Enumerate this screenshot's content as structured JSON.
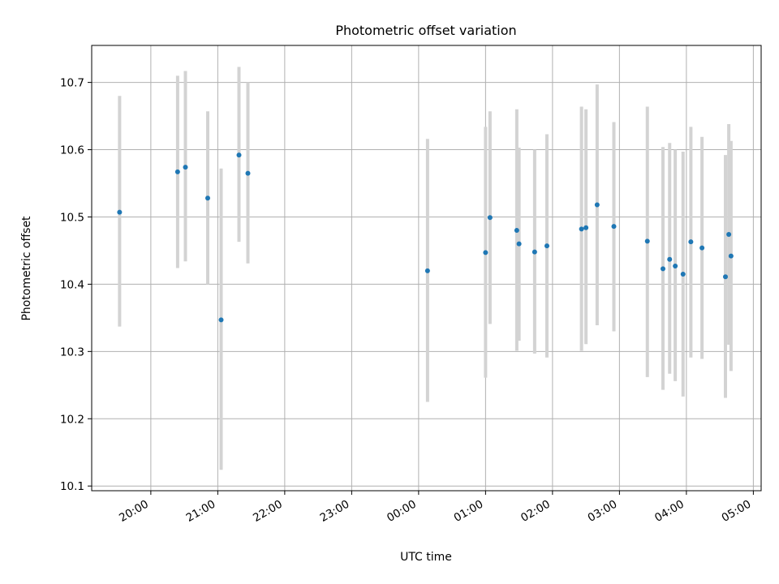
{
  "chart_data": {
    "type": "scatter",
    "title": "Photometric offset variation",
    "xlabel": "UTC time",
    "ylabel": "Photometric offset",
    "x_ticks": [
      "20:00",
      "21:00",
      "22:00",
      "23:00",
      "00:00",
      "01:00",
      "02:00",
      "03:00",
      "04:00",
      "05:00"
    ],
    "y_ticks": [
      "10.1",
      "10.2",
      "10.3",
      "10.4",
      "10.5",
      "10.6",
      "10.7"
    ],
    "ylim": [
      10.093,
      10.755
    ],
    "xlim": [
      "19:07",
      "05:07"
    ],
    "grid": true,
    "colors": {
      "point": "#1f77b4",
      "error_bar": "#d3d3d3",
      "grid": "#b0b0b0"
    },
    "points": [
      {
        "x": "19:32",
        "y": 10.507,
        "ymin": 10.337,
        "ymax": 10.68
      },
      {
        "x": "20:24",
        "y": 10.567,
        "ymin": 10.424,
        "ymax": 10.71
      },
      {
        "x": "20:31",
        "y": 10.574,
        "ymin": 10.434,
        "ymax": 10.717
      },
      {
        "x": "20:51",
        "y": 10.528,
        "ymin": 10.4,
        "ymax": 10.657
      },
      {
        "x": "21:03",
        "y": 10.347,
        "ymin": 10.124,
        "ymax": 10.572
      },
      {
        "x": "21:19",
        "y": 10.592,
        "ymin": 10.463,
        "ymax": 10.723
      },
      {
        "x": "21:27",
        "y": 10.565,
        "ymin": 10.431,
        "ymax": 10.7
      },
      {
        "x": "00:08",
        "y": 10.42,
        "ymin": 10.225,
        "ymax": 10.616
      },
      {
        "x": "01:00",
        "y": 10.447,
        "ymin": 10.261,
        "ymax": 10.634
      },
      {
        "x": "01:04",
        "y": 10.499,
        "ymin": 10.341,
        "ymax": 10.657
      },
      {
        "x": "01:28",
        "y": 10.48,
        "ymin": 10.301,
        "ymax": 10.66
      },
      {
        "x": "01:30",
        "y": 10.46,
        "ymin": 10.316,
        "ymax": 10.603
      },
      {
        "x": "01:44",
        "y": 10.448,
        "ymin": 10.297,
        "ymax": 10.6
      },
      {
        "x": "01:55",
        "y": 10.457,
        "ymin": 10.291,
        "ymax": 10.623
      },
      {
        "x": "02:26",
        "y": 10.482,
        "ymin": 10.301,
        "ymax": 10.664
      },
      {
        "x": "02:30",
        "y": 10.484,
        "ymin": 10.311,
        "ymax": 10.66
      },
      {
        "x": "02:40",
        "y": 10.518,
        "ymin": 10.339,
        "ymax": 10.697
      },
      {
        "x": "02:55",
        "y": 10.486,
        "ymin": 10.33,
        "ymax": 10.641
      },
      {
        "x": "03:25",
        "y": 10.464,
        "ymin": 10.262,
        "ymax": 10.664
      },
      {
        "x": "03:39",
        "y": 10.423,
        "ymin": 10.243,
        "ymax": 10.604
      },
      {
        "x": "03:45",
        "y": 10.437,
        "ymin": 10.267,
        "ymax": 10.61
      },
      {
        "x": "03:50",
        "y": 10.427,
        "ymin": 10.256,
        "ymax": 10.6
      },
      {
        "x": "03:57",
        "y": 10.415,
        "ymin": 10.233,
        "ymax": 10.597
      },
      {
        "x": "04:04",
        "y": 10.463,
        "ymin": 10.291,
        "ymax": 10.634
      },
      {
        "x": "04:14",
        "y": 10.454,
        "ymin": 10.289,
        "ymax": 10.619
      },
      {
        "x": "04:35",
        "y": 10.411,
        "ymin": 10.231,
        "ymax": 10.592
      },
      {
        "x": "04:38",
        "y": 10.474,
        "ymin": 10.31,
        "ymax": 10.638
      },
      {
        "x": "04:40",
        "y": 10.442,
        "ymin": 10.271,
        "ymax": 10.613
      }
    ]
  }
}
